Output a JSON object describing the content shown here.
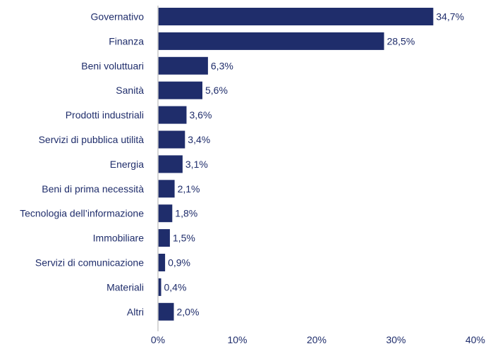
{
  "chart_data": {
    "type": "bar",
    "orientation": "horizontal",
    "categories": [
      "Governativo",
      "Finanza",
      "Beni voluttuari",
      "Sanità",
      "Prodotti industriali",
      "Servizi di pubblica utilità",
      "Energia",
      "Beni di prima necessità",
      "Tecnologia dell’informazione",
      "Immobiliare",
      "Servizi di comunicazione",
      "Materiali",
      "Altri"
    ],
    "values": [
      34.7,
      28.5,
      6.3,
      5.6,
      3.6,
      3.4,
      3.1,
      2.1,
      1.8,
      1.5,
      0.9,
      0.4,
      2.0
    ],
    "value_labels": [
      "34,7%",
      "28,5%",
      "6,3%",
      "5,6%",
      "3,6%",
      "3,4%",
      "3,1%",
      "2,1%",
      "1,8%",
      "1,5%",
      "0,9%",
      "0,4%",
      "2,0%"
    ],
    "xlim": [
      0,
      40
    ],
    "xticks": [
      0,
      10,
      20,
      30,
      40
    ],
    "xtick_labels": [
      "0%",
      "10%",
      "20%",
      "30%",
      "40%"
    ],
    "title": "",
    "xlabel": "",
    "ylabel": "",
    "grid": false,
    "legend": "none",
    "colors": {
      "bar": "#1f2d6b",
      "text": "#1f2d6b",
      "axis": "#c9c9c9"
    }
  }
}
